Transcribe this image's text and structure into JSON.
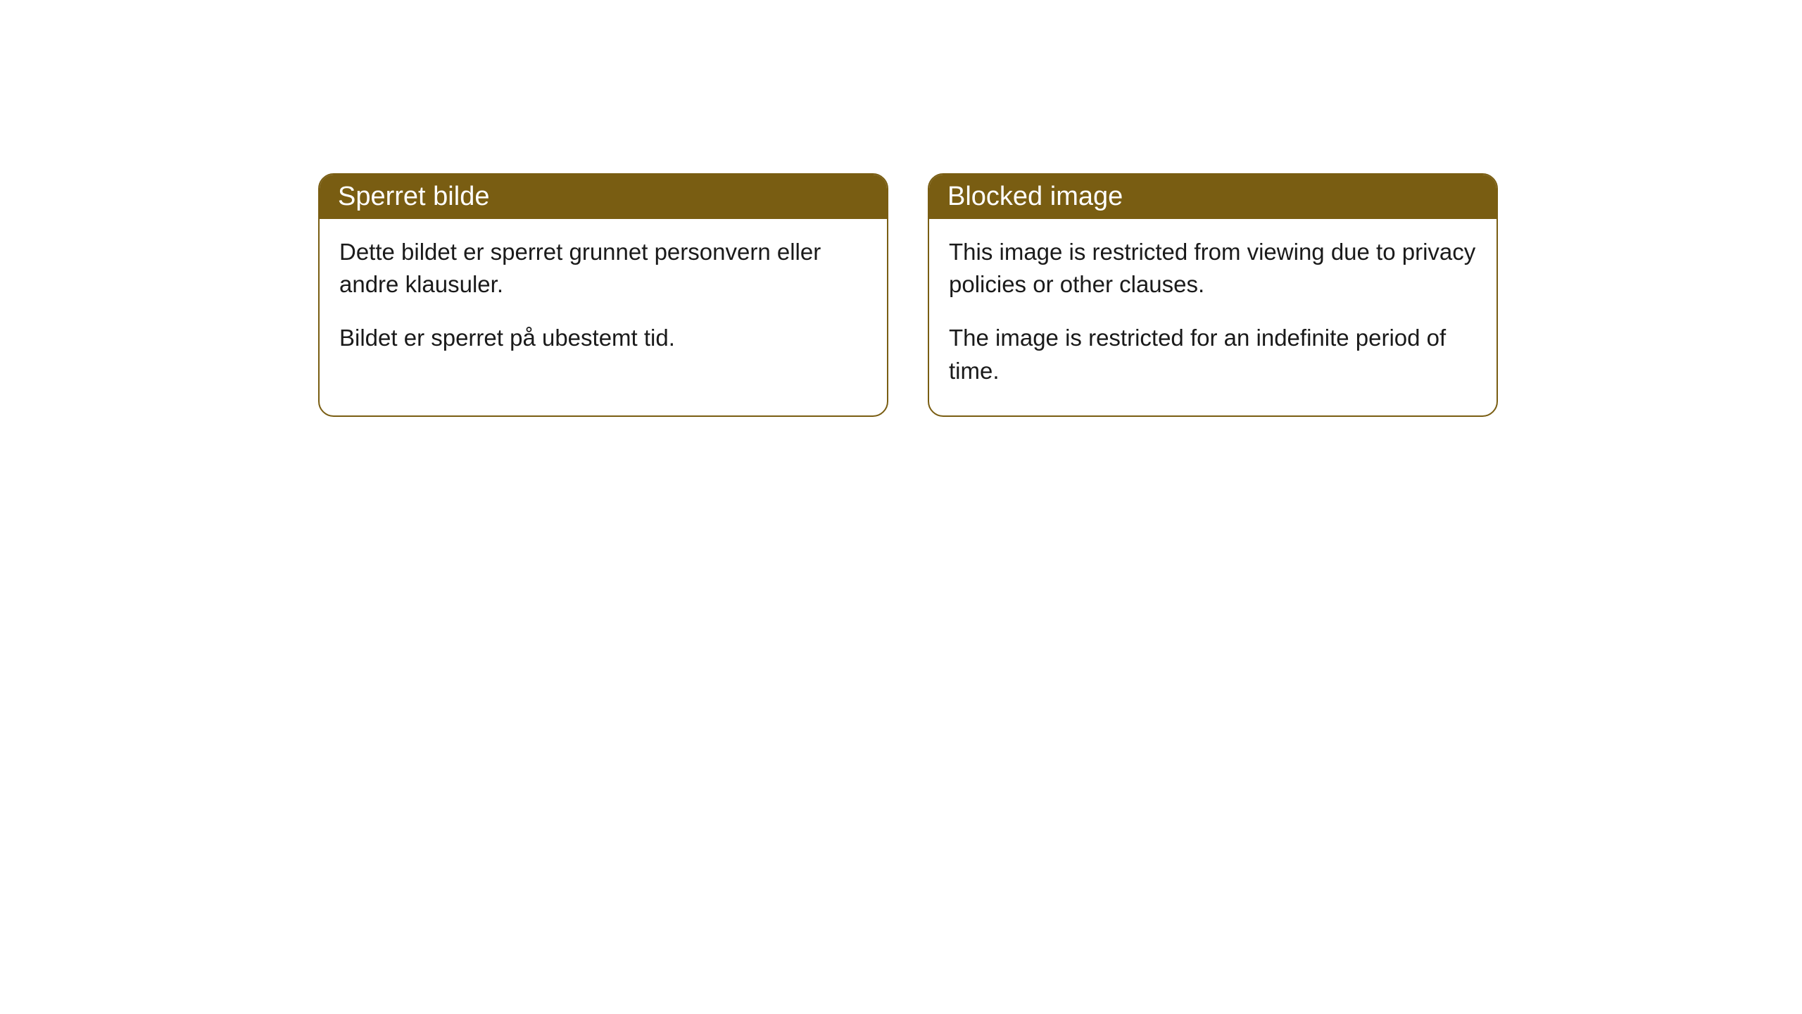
{
  "cards": [
    {
      "title": "Sperret bilde",
      "paragraph1": "Dette bildet er sperret grunnet personvern eller andre klausuler.",
      "paragraph2": "Bildet er sperret på ubestemt tid."
    },
    {
      "title": "Blocked image",
      "paragraph1": "This image is restricted from viewing due to privacy policies or other clauses.",
      "paragraph2": "The image is restricted for an indefinite period of time."
    }
  ],
  "styling": {
    "header_background": "#795d12",
    "header_text_color": "#ffffff",
    "border_color": "#795d12",
    "body_background": "#ffffff",
    "body_text_color": "#1a1a1a",
    "border_radius": 22,
    "title_fontsize": 38,
    "body_fontsize": 33
  }
}
